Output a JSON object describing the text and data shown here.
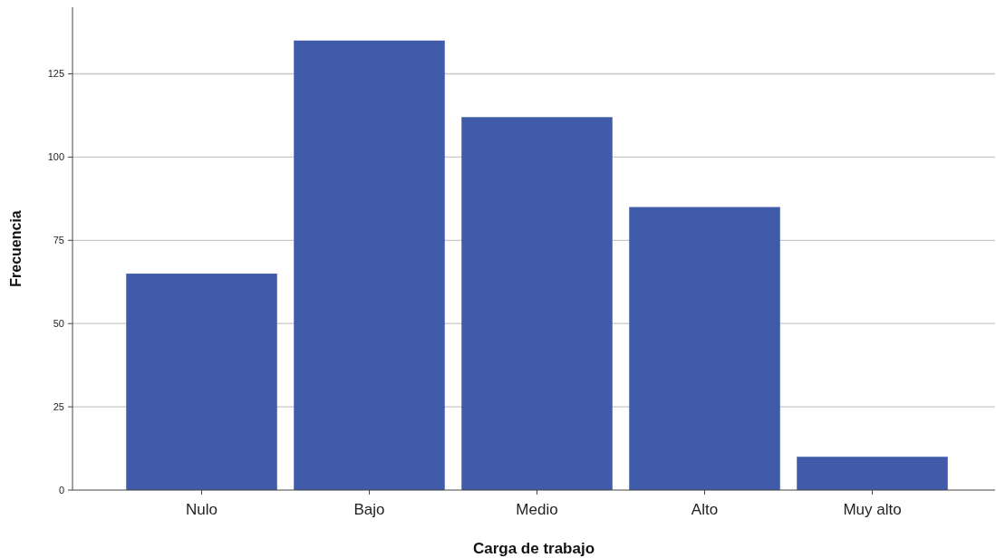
{
  "chart_data": {
    "type": "bar",
    "xlabel": "Carga de trabajo",
    "ylabel": "Frecuencia",
    "categories": [
      "Nulo",
      "Bajo",
      "Medio",
      "Alto",
      "Muy alto"
    ],
    "values": [
      65,
      135,
      112,
      85,
      10
    ],
    "color": "#3f5ba9",
    "ylim": [
      0,
      145
    ],
    "yticks": [
      0,
      25,
      50,
      75,
      100,
      125
    ],
    "grid": "y"
  }
}
